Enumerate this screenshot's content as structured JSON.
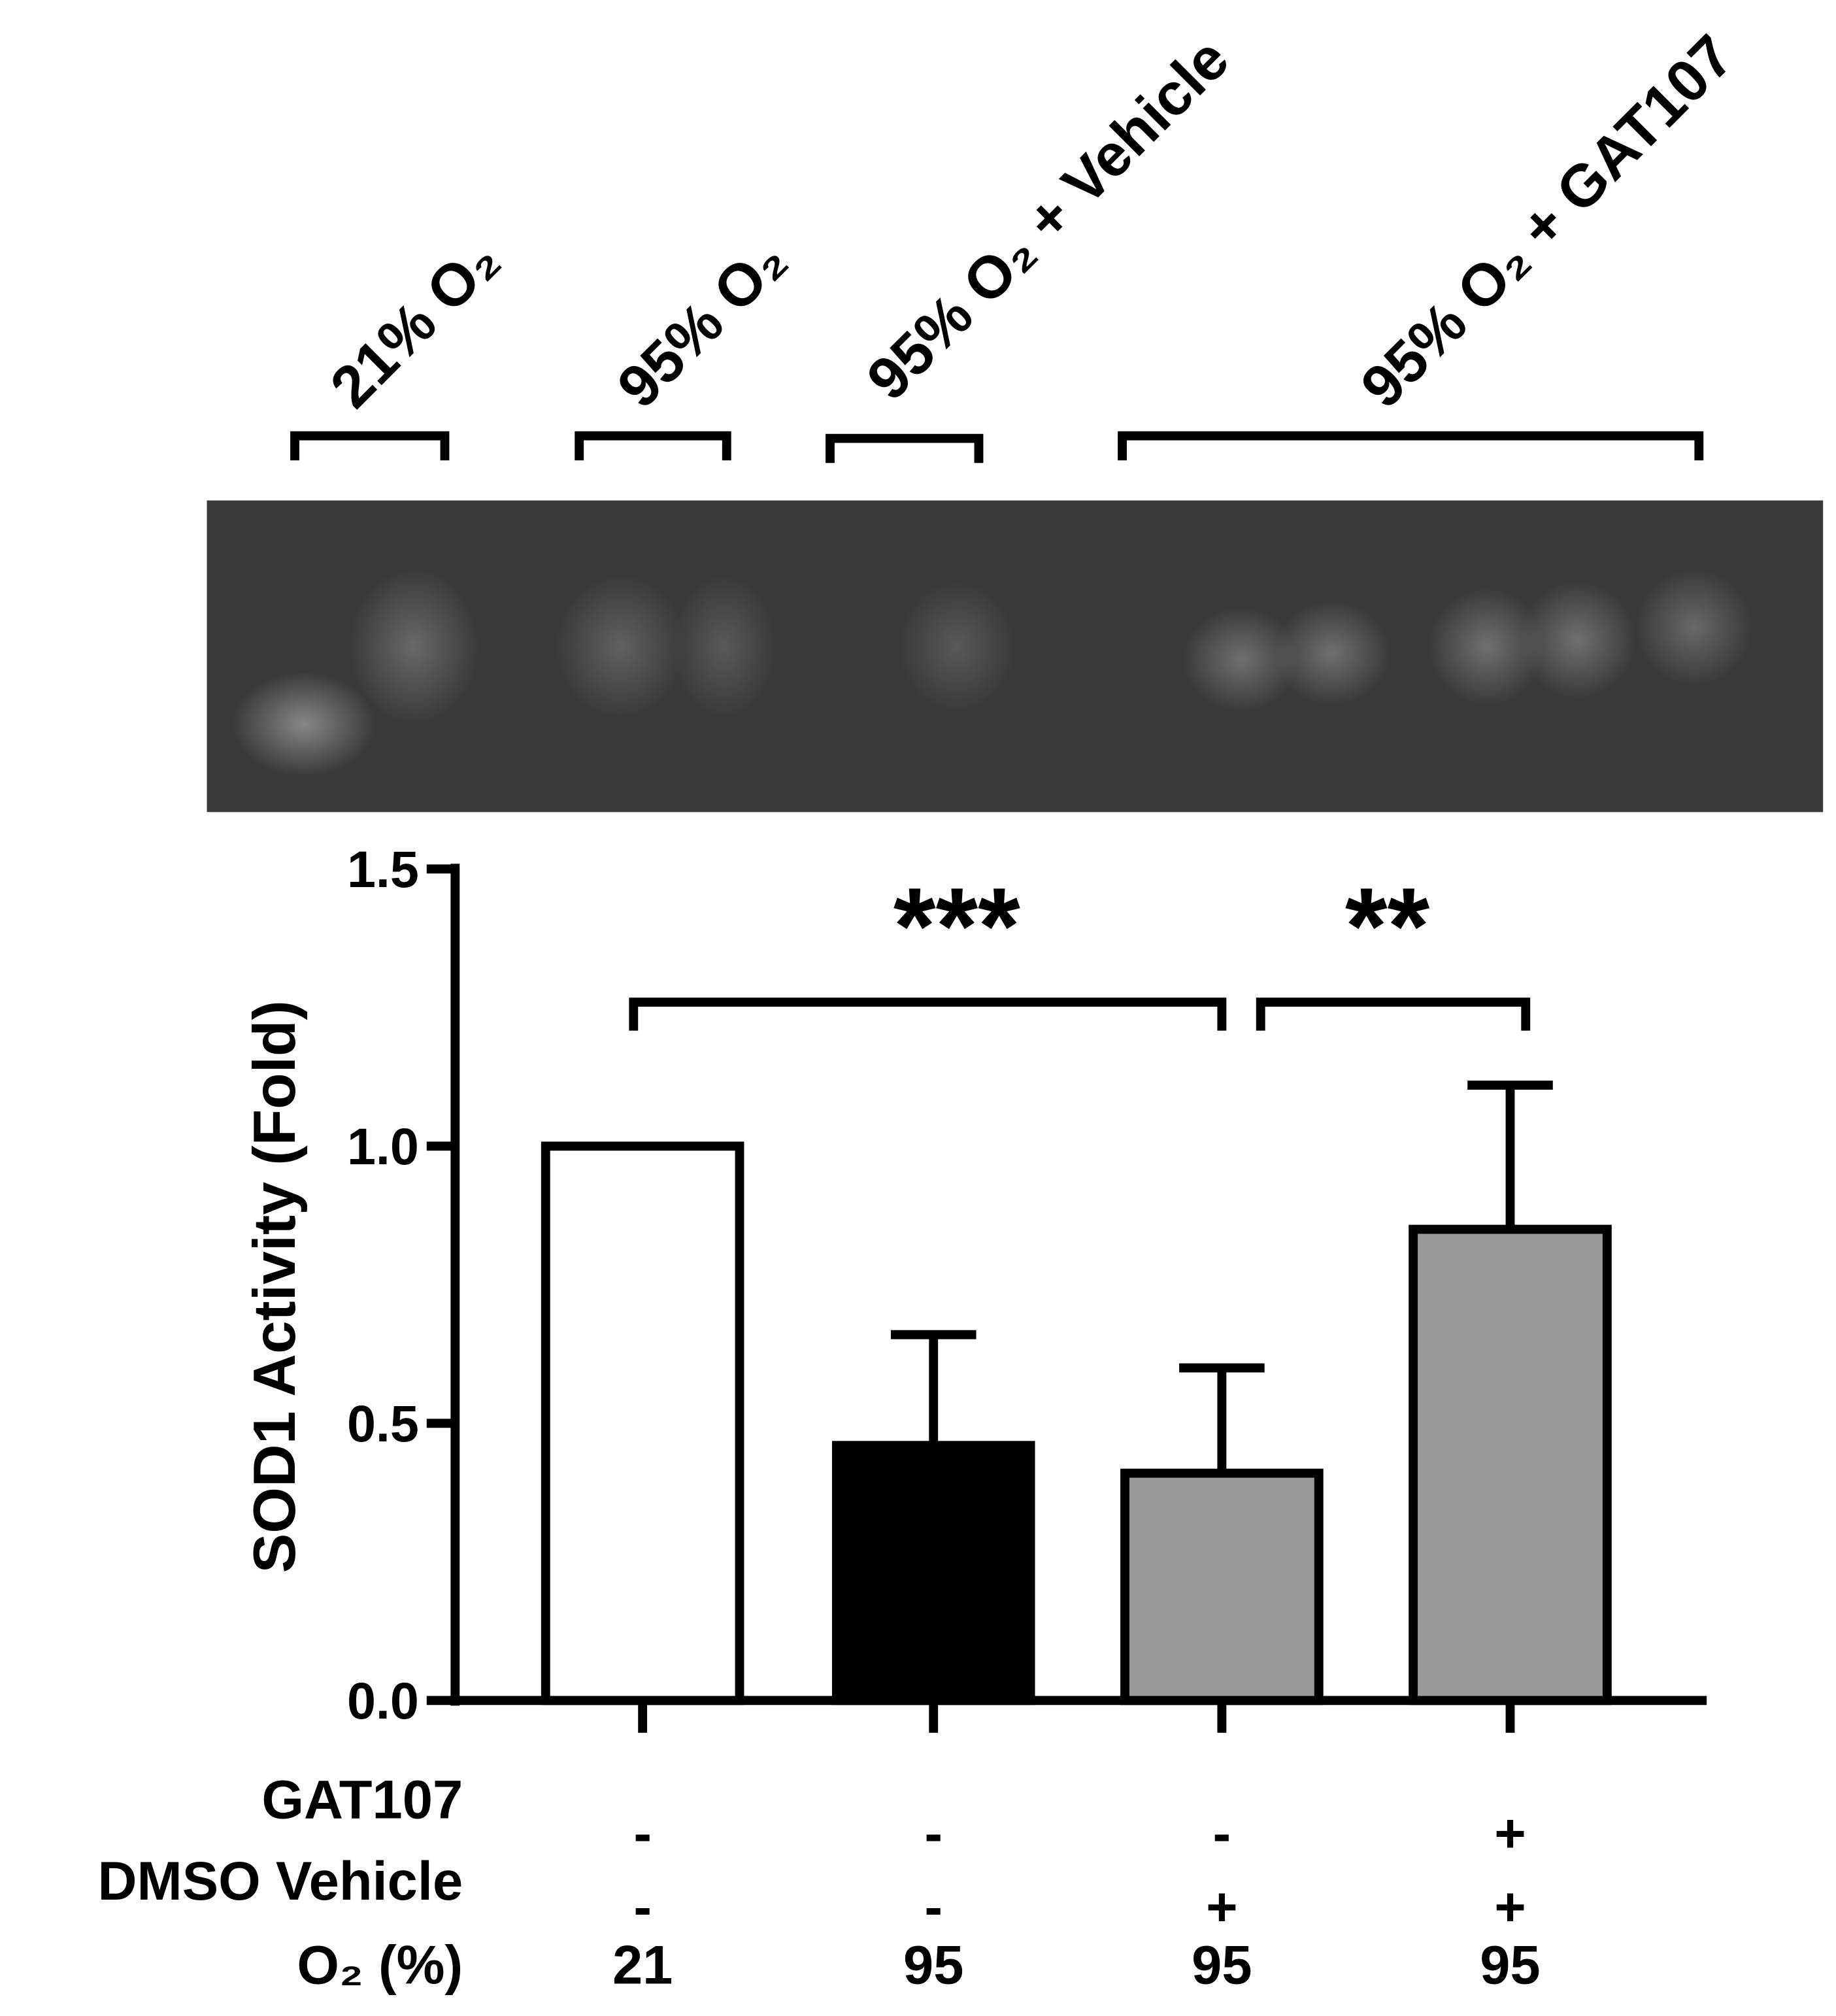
{
  "chart_data": {
    "type": "bar",
    "gel_labels": [
      "21% O₂",
      "95% O₂",
      "95% O₂ + Vehicle",
      "95% O₂ + GAT107"
    ],
    "y_label": "SOD1 Activity (Fold)",
    "values": [
      1.0,
      0.46,
      0.41,
      0.85
    ],
    "errors": [
      null,
      0.2,
      0.19,
      0.26
    ],
    "colors": [
      "#ffffff",
      "#000000",
      "#999999",
      "#999999"
    ],
    "ylim": [
      0,
      1.5
    ],
    "yticks": [
      {
        "value": 0,
        "label": "0.0"
      },
      0.5,
      {
        "value": 1,
        "label": "1.0"
      },
      1.5
    ],
    "significance": [
      "***",
      "**"
    ],
    "table_rows": [
      {
        "label": "GAT107",
        "values": [
          "-",
          "-",
          "-",
          "+"
        ]
      },
      {
        "label": "DMSO Vehicle",
        "values": [
          "-",
          "-",
          "+",
          "+"
        ]
      },
      {
        "label": "O₂ (%)",
        "values": [
          21,
          95,
          95,
          95
        ]
      }
    ]
  }
}
